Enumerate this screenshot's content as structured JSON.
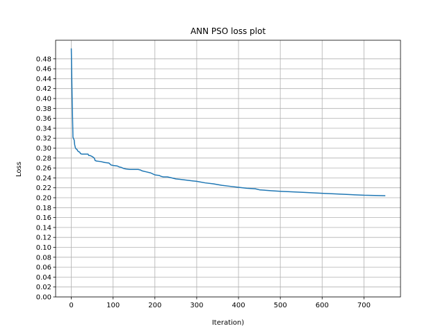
{
  "chart_data": {
    "type": "line",
    "title": "ANN PSO loss plot",
    "xlabel": "Iteration)",
    "ylabel": "Loss",
    "xlim": [
      -37.5,
      787.5
    ],
    "ylim": [
      0.0,
      0.5175
    ],
    "xticks": [
      0,
      100,
      200,
      300,
      400,
      500,
      600,
      700
    ],
    "yticks": [
      0.0,
      0.02,
      0.04,
      0.06,
      0.08,
      0.1,
      0.12,
      0.14,
      0.16,
      0.18,
      0.2,
      0.22,
      0.24,
      0.26,
      0.28,
      0.3,
      0.32,
      0.34,
      0.36,
      0.38,
      0.4,
      0.42,
      0.44,
      0.46,
      0.48
    ],
    "ytick_labels": [
      "0.00",
      "0.02",
      "0.04",
      "0.06",
      "0.08",
      "0.10",
      "0.12",
      "0.14",
      "0.16",
      "0.18",
      "0.20",
      "0.22",
      "0.24",
      "0.26",
      "0.28",
      "0.30",
      "0.32",
      "0.34",
      "0.36",
      "0.38",
      "0.40",
      "0.42",
      "0.44",
      "0.46",
      "0.48"
    ],
    "grid": true,
    "series": [
      {
        "color": "#1f77b4",
        "x": [
          0,
          1,
          2,
          3,
          4,
          5,
          6,
          7,
          8,
          10,
          12,
          14,
          15,
          17,
          20,
          22,
          25,
          30,
          35,
          40,
          42,
          45,
          50,
          55,
          57,
          60,
          70,
          80,
          90,
          95,
          100,
          110,
          115,
          120,
          125,
          130,
          140,
          150,
          160,
          165,
          170,
          180,
          190,
          195,
          200,
          210,
          215,
          220,
          230,
          240,
          250,
          260,
          270,
          280,
          290,
          300,
          320,
          340,
          360,
          380,
          400,
          420,
          440,
          450,
          480,
          500,
          550,
          600,
          650,
          700,
          750
        ],
        "y": [
          0.5,
          0.45,
          0.4,
          0.36,
          0.322,
          0.32,
          0.318,
          0.316,
          0.307,
          0.3,
          0.298,
          0.297,
          0.295,
          0.293,
          0.292,
          0.289,
          0.288,
          0.288,
          0.288,
          0.288,
          0.285,
          0.285,
          0.283,
          0.28,
          0.275,
          0.274,
          0.273,
          0.271,
          0.27,
          0.266,
          0.265,
          0.264,
          0.262,
          0.261,
          0.259,
          0.258,
          0.257,
          0.257,
          0.257,
          0.256,
          0.254,
          0.252,
          0.25,
          0.248,
          0.246,
          0.245,
          0.243,
          0.242,
          0.242,
          0.24,
          0.238,
          0.237,
          0.236,
          0.235,
          0.234,
          0.233,
          0.23,
          0.228,
          0.225,
          0.223,
          0.221,
          0.219,
          0.218,
          0.216,
          0.214,
          0.213,
          0.211,
          0.209,
          0.207,
          0.205,
          0.204
        ]
      }
    ]
  }
}
